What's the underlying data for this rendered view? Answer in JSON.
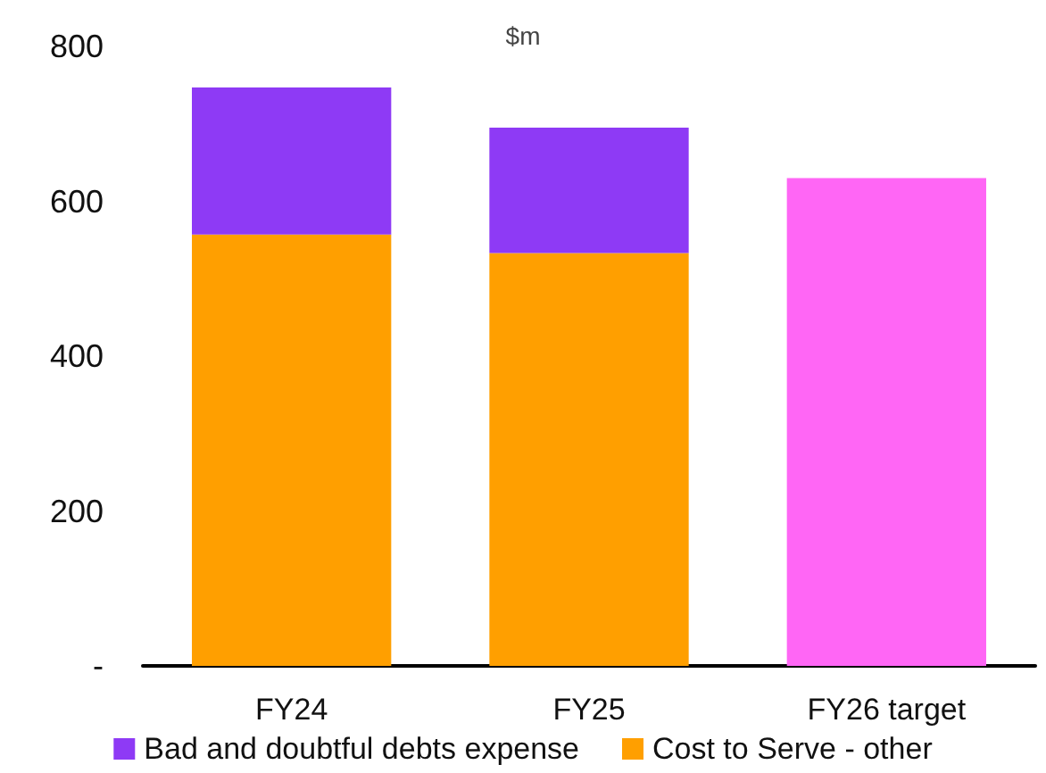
{
  "chart_data": {
    "type": "bar",
    "stacked": true,
    "ylabel": "$m",
    "categories": [
      "FY24",
      "FY25",
      "FY26 target"
    ],
    "series": [
      {
        "name": "Cost to Serve - other",
        "color": "#ff9f00",
        "values": [
          557,
          533,
          null
        ]
      },
      {
        "name": "Bad and doubtful debts expense",
        "color": "#8e3af5",
        "values": [
          190,
          162,
          null
        ]
      },
      {
        "color": "#ff66f5",
        "values": [
          null,
          null,
          630
        ]
      }
    ],
    "ylim": [
      0,
      800
    ],
    "yticks": [
      {
        "value": 0,
        "label": "-"
      },
      200,
      400,
      600,
      800
    ],
    "grid": false,
    "legend": "bottom"
  }
}
